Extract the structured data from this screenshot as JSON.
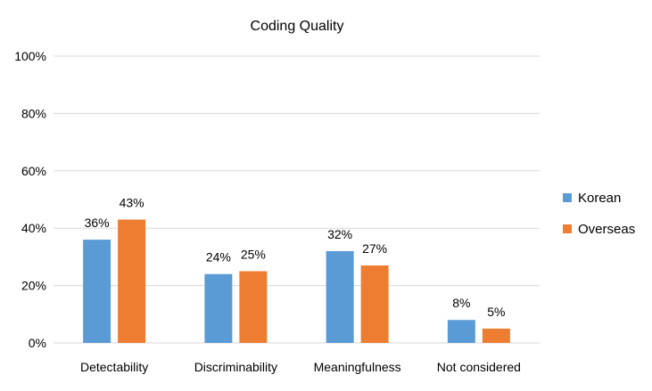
{
  "chart_data": {
    "type": "bar",
    "title": "Coding Quality",
    "categories": [
      "Detectability",
      "Discriminability",
      "Meaningfulness",
      "Not considered"
    ],
    "series": [
      {
        "name": "Korean",
        "values": [
          36,
          24,
          32,
          8
        ],
        "labels": [
          "36%",
          "24%",
          "32%",
          "8%"
        ],
        "color": "#5B9BD5"
      },
      {
        "name": "Overseas",
        "values": [
          43,
          25,
          27,
          5
        ],
        "labels": [
          "43%",
          "25%",
          "27%",
          "5%"
        ],
        "color": "#ED7D31"
      }
    ],
    "ylim": [
      0,
      100
    ],
    "yticks": [
      0,
      20,
      40,
      60,
      80,
      100
    ],
    "ytick_labels": [
      "0%",
      "20%",
      "40%",
      "60%",
      "80%",
      "100%"
    ],
    "grid": true,
    "legend": "right"
  }
}
